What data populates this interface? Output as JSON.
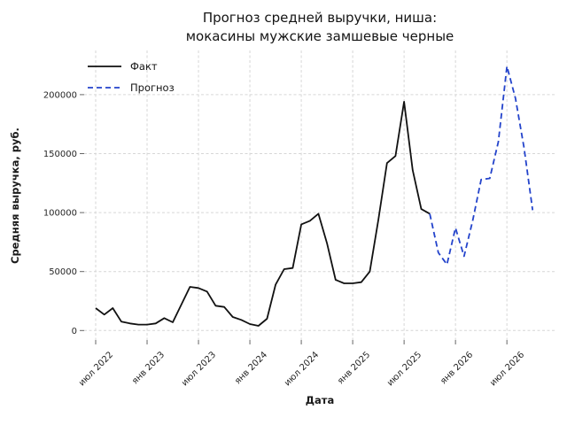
{
  "title": {
    "line1": "Прогноз средней выручки, ниша:",
    "line2": "мокасины мужские замшевые черные"
  },
  "axes": {
    "x_label": "Дата",
    "y_label": "Средняя выручка, руб."
  },
  "legend": {
    "items": [
      {
        "label": "Факт",
        "style": "solid",
        "color": "#111111"
      },
      {
        "label": "Прогноз",
        "style": "dashed",
        "color": "#2343cb"
      }
    ]
  },
  "chart_data": {
    "type": "line",
    "title": "Прогноз средней выручки, ниша: мокасины мужские замшевые черные",
    "xlabel": "Дата",
    "ylabel": "Средняя выручка, руб.",
    "grid": true,
    "legend_position": "upper left",
    "x_tick_labels": [
      "июл 2022",
      "янв 2023",
      "июл 2023",
      "янв 2024",
      "июл 2024",
      "янв 2025",
      "июл 2025",
      "янв 2026",
      "июл 2026"
    ],
    "y_ticks": [
      0,
      50000,
      100000,
      150000,
      200000
    ],
    "ylim": [
      -8000,
      237000
    ],
    "series": [
      {
        "name": "Факт",
        "style": "solid",
        "color": "#111111",
        "start_index": 0,
        "months": [
          "июл 2022",
          "авг 2022",
          "сен 2022",
          "окт 2022",
          "ноя 2022",
          "дек 2022",
          "янв 2023",
          "фев 2023",
          "мар 2023",
          "апр 2023",
          "май 2023",
          "июн 2023",
          "июл 2023",
          "авг 2023",
          "сен 2023",
          "окт 2023",
          "ноя 2023",
          "дек 2023",
          "янв 2024",
          "фев 2024",
          "мар 2024",
          "апр 2024",
          "май 2024",
          "июн 2024",
          "июл 2024",
          "авг 2024",
          "сен 2024",
          "окт 2024",
          "ноя 2024",
          "дек 2024",
          "янв 2025",
          "фев 2025",
          "мар 2025",
          "апр 2025",
          "май 2025",
          "июн 2025",
          "июл 2025",
          "авг 2025",
          "сен 2025",
          "окт 2025"
        ],
        "values": [
          19000,
          13500,
          19000,
          7500,
          6000,
          5000,
          5000,
          6000,
          10500,
          7000,
          22000,
          37000,
          36000,
          33000,
          21000,
          20000,
          11500,
          9000,
          5500,
          4000,
          10000,
          39000,
          52000,
          53000,
          90000,
          93000,
          99000,
          74000,
          43000,
          40000,
          40000,
          41000,
          50000,
          94000,
          142000,
          148000,
          194000,
          136000,
          103000,
          99000
        ]
      },
      {
        "name": "Прогноз",
        "style": "dashed",
        "color": "#2343cb",
        "start_index": 39,
        "months": [
          "окт 2025",
          "ноя 2025",
          "дек 2025",
          "янв 2026",
          "фев 2026",
          "мар 2026",
          "апр 2026",
          "май 2026",
          "июн 2026",
          "июл 2026",
          "авг 2026",
          "сен 2026",
          "окт 2026"
        ],
        "values": [
          99000,
          66000,
          56000,
          87000,
          63000,
          93000,
          128000,
          129000,
          160000,
          224000,
          197000,
          155000,
          102000
        ]
      }
    ]
  }
}
